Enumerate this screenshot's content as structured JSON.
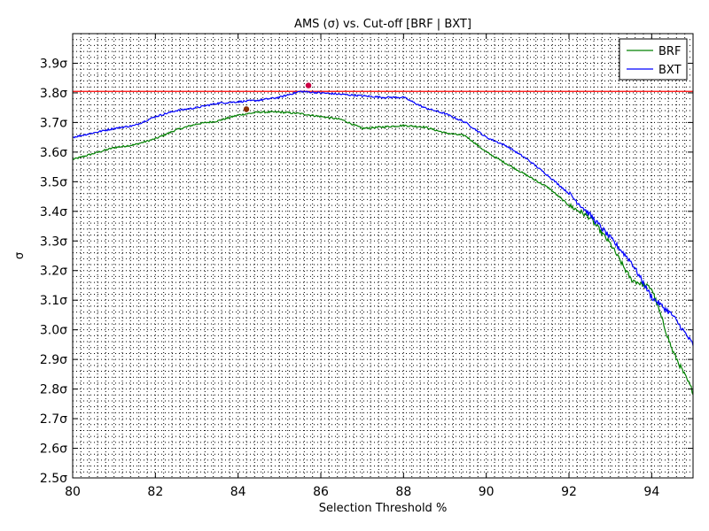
{
  "chart_data": {
    "type": "line",
    "title": "AMS (σ) vs. Cut-off [BRF | BXT]",
    "xlabel": "Selection Threshold %",
    "ylabel": "σ",
    "xlim": [
      80,
      95
    ],
    "ylim": [
      2.5,
      4.0
    ],
    "x_ticks": [
      80,
      82,
      84,
      86,
      88,
      90,
      92,
      94
    ],
    "x_tick_labels": [
      "80",
      "82",
      "84",
      "86",
      "88",
      "90",
      "92",
      "94"
    ],
    "y_ticks": [
      2.5,
      2.6,
      2.7,
      2.8,
      2.9,
      3.0,
      3.1,
      3.2,
      3.3,
      3.4,
      3.5,
      3.6,
      3.7,
      3.8,
      3.9
    ],
    "y_tick_labels": [
      "2.5σ",
      "2.6σ",
      "2.7σ",
      "2.8σ",
      "2.9σ",
      "3.0σ",
      "3.1σ",
      "3.2σ",
      "3.3σ",
      "3.4σ",
      "3.5σ",
      "3.6σ",
      "3.7σ",
      "3.8σ",
      "3.9σ"
    ],
    "grid": true,
    "legend_position": "top-right",
    "reference_line": {
      "y": 3.805,
      "color": "#ff0000"
    },
    "series": [
      {
        "name": "BRF",
        "color": "#008000",
        "x": [
          80.0,
          80.5,
          81.0,
          81.5,
          82.0,
          82.5,
          83.0,
          83.5,
          84.0,
          84.5,
          85.0,
          85.5,
          86.0,
          86.5,
          87.0,
          87.5,
          88.0,
          88.5,
          89.0,
          89.5,
          90.0,
          90.5,
          91.0,
          91.5,
          92.0,
          92.5,
          93.0,
          93.5,
          94.0,
          94.5,
          95.0
        ],
        "y": [
          3.575,
          3.595,
          3.615,
          3.625,
          3.645,
          3.675,
          3.695,
          3.705,
          3.725,
          3.735,
          3.735,
          3.73,
          3.72,
          3.71,
          3.68,
          3.685,
          3.69,
          3.685,
          3.665,
          3.655,
          3.6,
          3.56,
          3.52,
          3.48,
          3.42,
          3.38,
          3.29,
          3.17,
          3.14,
          2.93,
          2.79
        ],
        "max_marker": {
          "x": 84.2,
          "y": 3.745,
          "color": "#8b2e00"
        }
      },
      {
        "name": "BXT",
        "color": "#0000ff",
        "x": [
          80.0,
          80.5,
          81.0,
          81.5,
          82.0,
          82.5,
          83.0,
          83.5,
          84.0,
          84.5,
          85.0,
          85.5,
          86.0,
          86.5,
          87.0,
          87.5,
          88.0,
          88.5,
          89.0,
          89.5,
          90.0,
          90.5,
          91.0,
          91.5,
          92.0,
          92.5,
          93.0,
          93.5,
          94.0,
          94.5,
          95.0
        ],
        "y": [
          3.65,
          3.665,
          3.68,
          3.69,
          3.72,
          3.74,
          3.75,
          3.765,
          3.77,
          3.775,
          3.785,
          3.805,
          3.8,
          3.795,
          3.79,
          3.785,
          3.785,
          3.75,
          3.73,
          3.7,
          3.65,
          3.62,
          3.575,
          3.52,
          3.46,
          3.39,
          3.31,
          3.23,
          3.11,
          3.05,
          2.95
        ],
        "max_marker": {
          "x": 85.7,
          "y": 3.825,
          "color": "#cc0044"
        }
      }
    ]
  }
}
